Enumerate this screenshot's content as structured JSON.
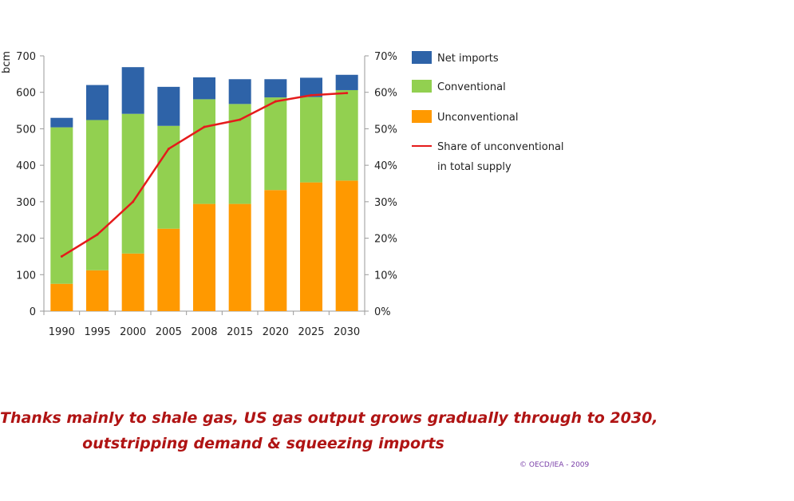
{
  "chart_data": {
    "type": "bar",
    "stacked": true,
    "categories": [
      "1990",
      "1995",
      "2000",
      "2005",
      "2008",
      "2015",
      "2020",
      "2025",
      "2030"
    ],
    "series": [
      {
        "name": "Unconventional",
        "color": "#ff9900",
        "values": [
          75,
          112,
          158,
          226,
          294,
          294,
          332,
          353,
          358
        ]
      },
      {
        "name": "Conventional",
        "color": "#92d050",
        "values": [
          429,
          412,
          383,
          282,
          287,
          274,
          254,
          234,
          248
        ]
      },
      {
        "name": "Net imports",
        "color": "#2e63a8",
        "values": [
          26,
          96,
          128,
          107,
          60,
          68,
          50,
          53,
          42
        ]
      }
    ],
    "line_series": {
      "name": "Share of unconventional in total supply",
      "color": "#e51b1b",
      "axis": "right",
      "values": [
        15,
        21,
        30,
        44.5,
        50.5,
        52.5,
        57.5,
        59.2,
        59.8
      ]
    },
    "ylabel": "bcm",
    "ylim": [
      0,
      700
    ],
    "yticks": [
      "0",
      "100",
      "200",
      "300",
      "400",
      "500",
      "600",
      "700"
    ],
    "y2lim": [
      0,
      70
    ],
    "y2ticks": [
      "0%",
      "10%",
      "20%",
      "30%",
      "40%",
      "50%",
      "60%",
      "70%"
    ],
    "legend": {
      "position": "right",
      "items": [
        {
          "key": "net_imports",
          "lines": [
            "Net imports"
          ]
        },
        {
          "key": "conventional",
          "lines": [
            "Conventional"
          ]
        },
        {
          "key": "unconventional",
          "lines": [
            "Unconventional"
          ]
        },
        {
          "key": "share",
          "lines": [
            "Share of unconventional",
            "in total supply"
          ]
        }
      ]
    },
    "grid": false
  },
  "caption": {
    "line1": "Thanks mainly to shale gas, US gas output grows gradually through to 2030,",
    "line2": "outstripping demand & squeezing imports"
  },
  "copyright": "© OECD/IEA - 2009"
}
